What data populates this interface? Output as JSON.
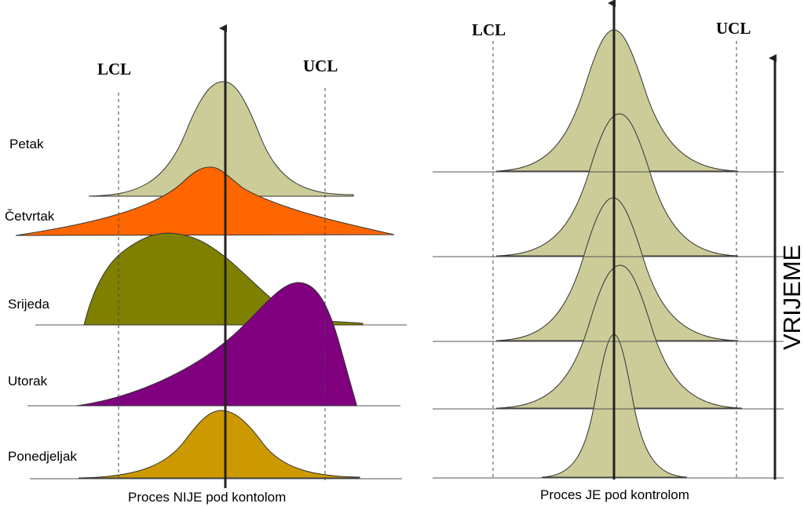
{
  "left_panel": {
    "lcl_label": "LCL",
    "ucl_label": "UCL",
    "caption": "Proces NIJE pod kontolom",
    "days": [
      {
        "label": "Ponedjeljak",
        "color": "#CC9900"
      },
      {
        "label": "Utorak",
        "color": "#800080"
      },
      {
        "label": "Srijeda",
        "color": "#808000"
      },
      {
        "label": "Četvrtak",
        "color": "#FF6600"
      },
      {
        "label": "Petak",
        "color": "#CCCC99"
      }
    ]
  },
  "right_panel": {
    "lcl_label": "LCL",
    "ucl_label": "UCL",
    "caption": "Proces JE pod kontrolom",
    "time_label": "VRIJEME",
    "curve_color": "#CCCC99",
    "curve_count": 5
  }
}
